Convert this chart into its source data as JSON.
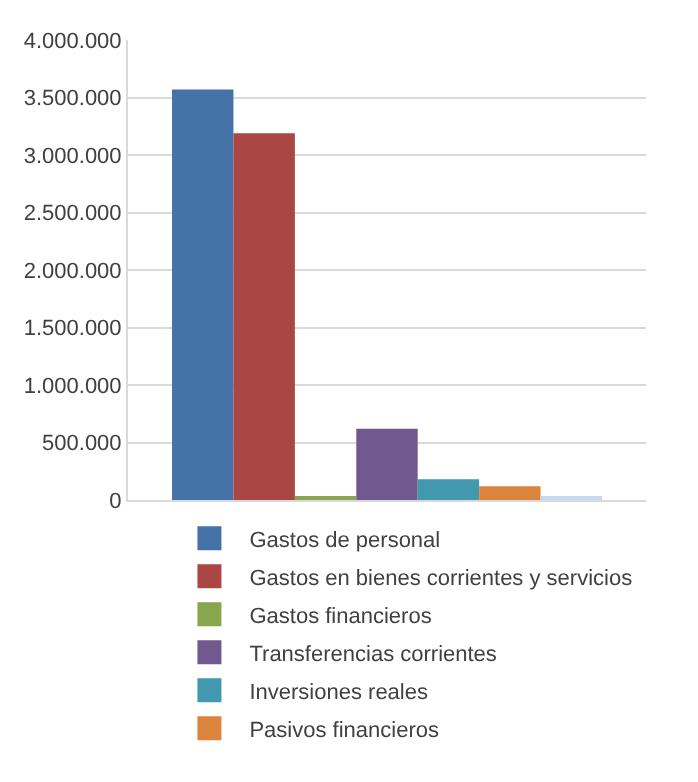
{
  "chart_data": {
    "type": "bar",
    "categories": [
      null
    ],
    "series": [
      {
        "name": "Gastos de personal",
        "color": "#4572a7",
        "values": [
          3570000
        ]
      },
      {
        "name": "Gastos en bienes corrientes y servicios",
        "color": "#aa4643",
        "values": [
          3190000
        ]
      },
      {
        "name": "Gastos financieros",
        "color": "#89a54e",
        "values": [
          20000
        ]
      },
      {
        "name": "Transferencias corrientes",
        "color": "#71588f",
        "values": [
          620000
        ]
      },
      {
        "name": "Inversiones reales",
        "color": "#4198af",
        "values": [
          180000
        ]
      },
      {
        "name": "Pasivos financieros",
        "color": "#db843d",
        "values": [
          120000
        ]
      },
      {
        "color": "#c6d9f1",
        "values": [
          20000
        ]
      }
    ],
    "ylim": [
      0,
      4000000
    ],
    "yticks": [
      {
        "value": 0,
        "label": "0"
      },
      {
        "value": 500000,
        "label": "500.000"
      },
      {
        "value": 1000000,
        "label": "1.000.000"
      },
      {
        "value": 1500000,
        "label": "1.500.000"
      },
      {
        "value": 2000000,
        "label": "2.000.000"
      },
      {
        "value": 2500000,
        "label": "2.500.000"
      },
      {
        "value": 3000000,
        "label": "3.000.000"
      },
      {
        "value": 3500000,
        "label": "3.500.000"
      },
      {
        "value": 4000000,
        "label": "4.000.000"
      }
    ],
    "grid": "y",
    "legend": "bottom",
    "tick_labels": "y"
  }
}
